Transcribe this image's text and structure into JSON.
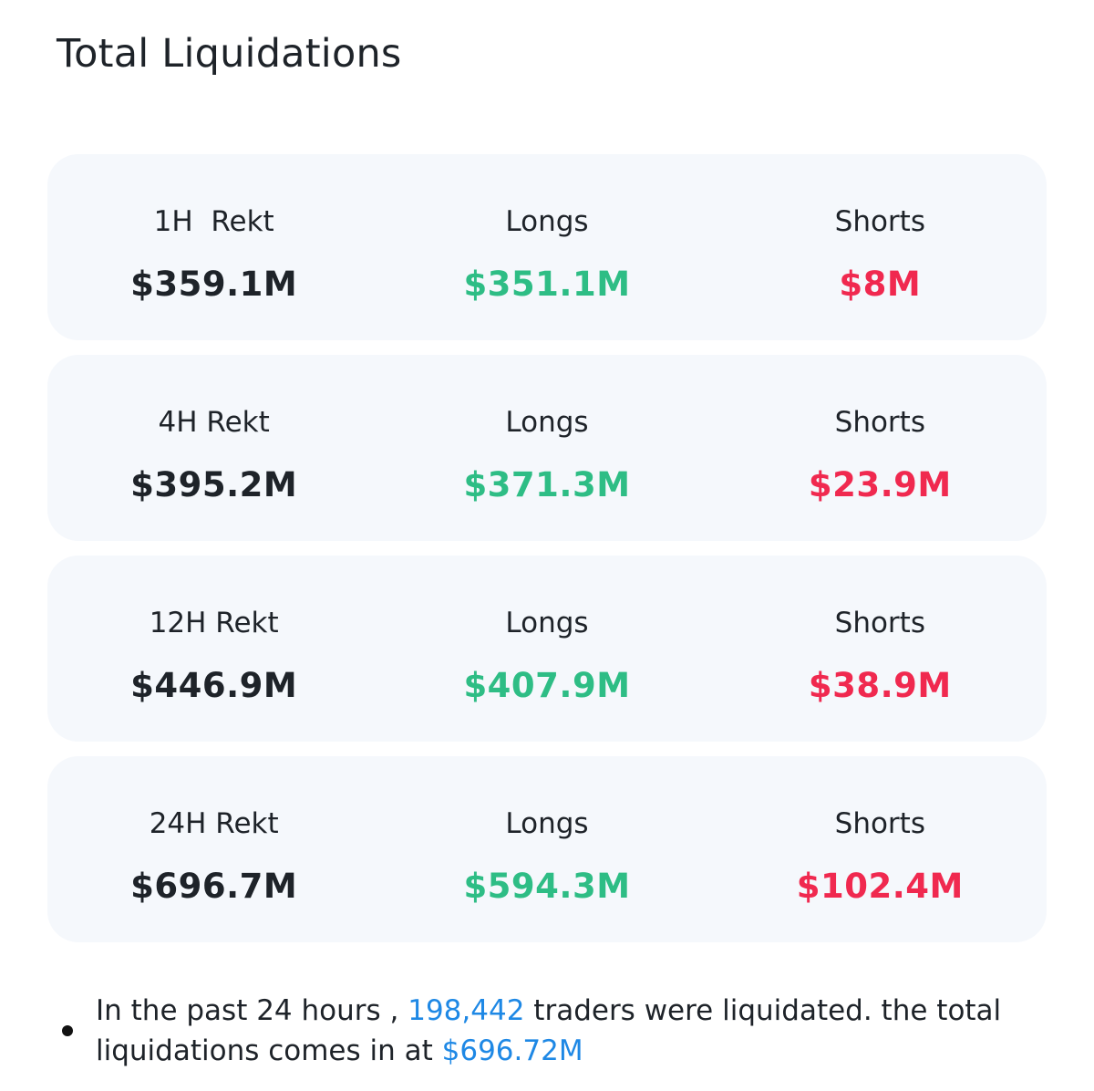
{
  "title": "Total Liquidations",
  "cards": [
    {
      "period_label": "1H  Rekt",
      "total": "$359.1M",
      "longs_label": "Longs",
      "longs": "$351.1M",
      "shorts_label": "Shorts",
      "shorts": "$8M"
    },
    {
      "period_label": "4H Rekt",
      "total": "$395.2M",
      "longs_label": "Longs",
      "longs": "$371.3M",
      "shorts_label": "Shorts",
      "shorts": "$23.9M"
    },
    {
      "period_label": "12H Rekt",
      "total": "$446.9M",
      "longs_label": "Longs",
      "longs": "$407.9M",
      "shorts_label": "Shorts",
      "shorts": "$38.9M"
    },
    {
      "period_label": "24H Rekt",
      "total": "$696.7M",
      "longs_label": "Longs",
      "longs": "$594.3M",
      "shorts_label": "Shorts",
      "shorts": "$102.4M"
    }
  ],
  "summary": {
    "part1": "In the past 24 hours , ",
    "traders_count": "198,442",
    "part2": " traders were liquidated. the total liquidations comes in at ",
    "total_amount": "$696.72M"
  },
  "colors": {
    "longs": "#2ebd85",
    "shorts": "#f0294f",
    "highlight": "#1e88e5",
    "card_bg": "#f5f8fc"
  }
}
